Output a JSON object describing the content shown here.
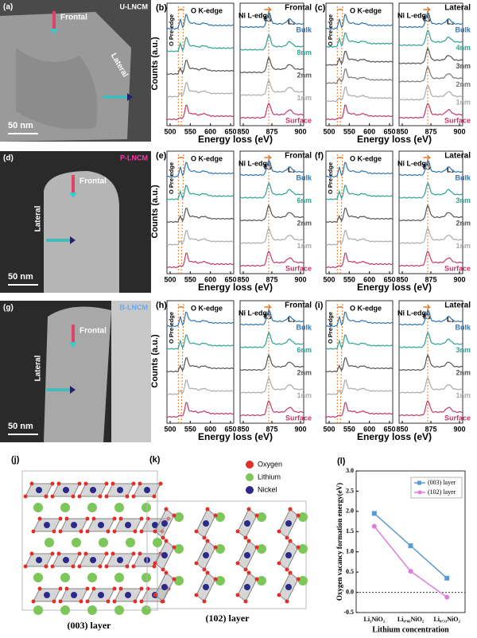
{
  "tem": [
    {
      "letter": "(a)",
      "sample": "U-LNCM",
      "frontal": "Frontal",
      "lateral": "Lateral",
      "scale": "50 nm"
    },
    {
      "letter": "(d)",
      "sample": "P-LNCM",
      "frontal": "Frontal",
      "lateral": "Lateral",
      "scale": "50 nm"
    },
    {
      "letter": "(g)",
      "sample": "B-LNCM",
      "frontal": "Frontal",
      "lateral": "Lateral",
      "scale": "50 nm"
    }
  ],
  "spectra": {
    "ylabel": "Counts (a.u.)",
    "xlabel": "Energy loss (eV)",
    "o_pre_edge": "O Pre-edge",
    "o_k_edge": "O K-edge",
    "ni_l_edge": "Ni L-edge",
    "l3": "L₃",
    "l2": "L₂",
    "xticks_o": [
      500,
      550,
      600,
      650
    ],
    "xticks_ni": [
      850,
      875,
      900
    ],
    "panels": [
      {
        "letter": "(b)",
        "direction": "Frontal",
        "traces": [
          {
            "name": "Bulk",
            "color": "#2e75b6"
          },
          {
            "name": "8nm",
            "color": "#2aa395"
          },
          {
            "name": "2nm",
            "color": "#555555"
          },
          {
            "name": "1nm",
            "color": "#aaaaaa"
          },
          {
            "name": "Surface",
            "color": "#c8356b"
          }
        ]
      },
      {
        "letter": "(c)",
        "direction": "Lateral",
        "traces": [
          {
            "name": "Bulk",
            "color": "#2e75b6"
          },
          {
            "name": "4nm",
            "color": "#2aa395"
          },
          {
            "name": "3nm",
            "color": "#555555"
          },
          {
            "name": "2nm",
            "color": "#777777"
          },
          {
            "name": "1nm",
            "color": "#aaaaaa"
          },
          {
            "name": "Surface",
            "color": "#c8356b"
          }
        ]
      },
      {
        "letter": "(e)",
        "direction": "Frontal",
        "traces": [
          {
            "name": "Bulk",
            "color": "#2e75b6"
          },
          {
            "name": "6nm",
            "color": "#2aa395"
          },
          {
            "name": "2nm",
            "color": "#555555"
          },
          {
            "name": "1nm",
            "color": "#aaaaaa"
          },
          {
            "name": "Surface",
            "color": "#c8356b"
          }
        ]
      },
      {
        "letter": "(f)",
        "direction": "Lateral",
        "traces": [
          {
            "name": "Bulk",
            "color": "#2e75b6"
          },
          {
            "name": "3nm",
            "color": "#2aa395"
          },
          {
            "name": "2nm",
            "color": "#555555"
          },
          {
            "name": "1nm",
            "color": "#aaaaaa"
          },
          {
            "name": "Surface",
            "color": "#c8356b"
          }
        ]
      },
      {
        "letter": "(h)",
        "direction": "Frontal",
        "traces": [
          {
            "name": "Bulk",
            "color": "#2e75b6"
          },
          {
            "name": "6nm",
            "color": "#2aa395"
          },
          {
            "name": "2nm",
            "color": "#555555"
          },
          {
            "name": "1nm",
            "color": "#aaaaaa"
          },
          {
            "name": "Surface",
            "color": "#c8356b"
          }
        ]
      },
      {
        "letter": "(i)",
        "direction": "Lateral",
        "traces": [
          {
            "name": "Bulk",
            "color": "#2e75b6"
          },
          {
            "name": "3nm",
            "color": "#2aa395"
          },
          {
            "name": "2nm",
            "color": "#555555"
          },
          {
            "name": "1nm",
            "color": "#aaaaaa"
          },
          {
            "name": "Surface",
            "color": "#c8356b"
          }
        ]
      }
    ]
  },
  "structures": {
    "j": {
      "letter": "(j)",
      "caption": "(003) layer"
    },
    "k": {
      "letter": "(k)",
      "caption": "(102) layer"
    },
    "legend": [
      {
        "name": "Oxygen",
        "color": "#e0302a"
      },
      {
        "name": "Lithium",
        "color": "#7cc65a"
      },
      {
        "name": "Nickel",
        "color": "#2a2a8c"
      }
    ]
  },
  "chart_data": {
    "type": "line",
    "letter": "(l)",
    "categories": [
      "Li₁NiO₂",
      "Li₀.₆₆NiO₂",
      "Li₀.₃₃NiO₂"
    ],
    "series": [
      {
        "name": "(003) layer",
        "color": "#5b9bd5",
        "marker": "square",
        "values": [
          1.95,
          1.15,
          0.35
        ]
      },
      {
        "name": "(102) layer",
        "color": "#e07be0",
        "marker": "circle",
        "values": [
          1.63,
          0.52,
          -0.12
        ]
      }
    ],
    "xlabel": "Lithium concentration",
    "ylabel": "Oxygen vacancy formation energy(eV)",
    "ylim": [
      -0.5,
      3.0
    ],
    "yticks": [
      -0.5,
      {
        "value": 0,
        "label": "0.0"
      },
      0.5,
      {
        "value": 1,
        "label": "1.0"
      },
      1.5,
      {
        "value": 2,
        "label": "2.0"
      },
      2.5,
      {
        "value": 3,
        "label": "3.0"
      }
    ],
    "hline": 0,
    "legend": "upper right"
  }
}
